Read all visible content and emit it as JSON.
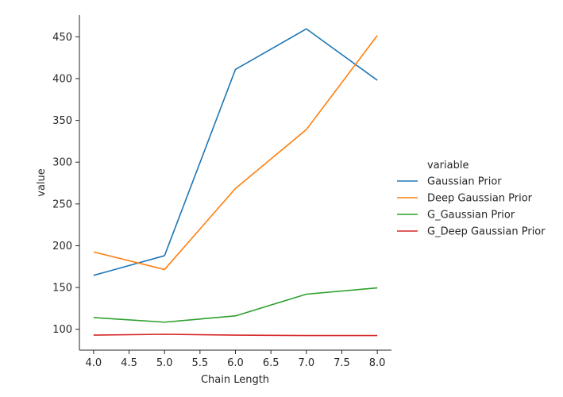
{
  "chart_data": {
    "type": "line",
    "x": [
      4.0,
      5.0,
      6.0,
      7.0,
      8.0
    ],
    "series": [
      {
        "name": "Gaussian Prior",
        "values": [
          164.5,
          188.0,
          411.0,
          459.5,
          398.0
        ],
        "color": "#1f77b4"
      },
      {
        "name": "Deep Gaussian Prior",
        "values": [
          192.5,
          171.5,
          268.5,
          339.0,
          451.5
        ],
        "color": "#ff7f0e"
      },
      {
        "name": "G_Gaussian Prior",
        "values": [
          114.0,
          108.5,
          116.0,
          142.0,
          149.5
        ],
        "color": "#2ca02c"
      },
      {
        "name": "G_Deep Gaussian Prior",
        "values": [
          93.0,
          94.0,
          93.0,
          92.5,
          92.5
        ],
        "color": "#d62728"
      }
    ],
    "xlabel": "Chain Length",
    "ylabel": "value",
    "legend_title": "variable",
    "legend_position": "right",
    "xlim": [
      3.8,
      8.2
    ],
    "ylim": [
      75,
      476
    ],
    "xticks": [
      "4.0",
      "4.5",
      "5.0",
      "5.5",
      "6.0",
      "6.5",
      "7.0",
      "7.5",
      "8.0"
    ],
    "yticks": [
      "100",
      "150",
      "200",
      "250",
      "300",
      "350",
      "400",
      "450"
    ],
    "grid": false
  }
}
